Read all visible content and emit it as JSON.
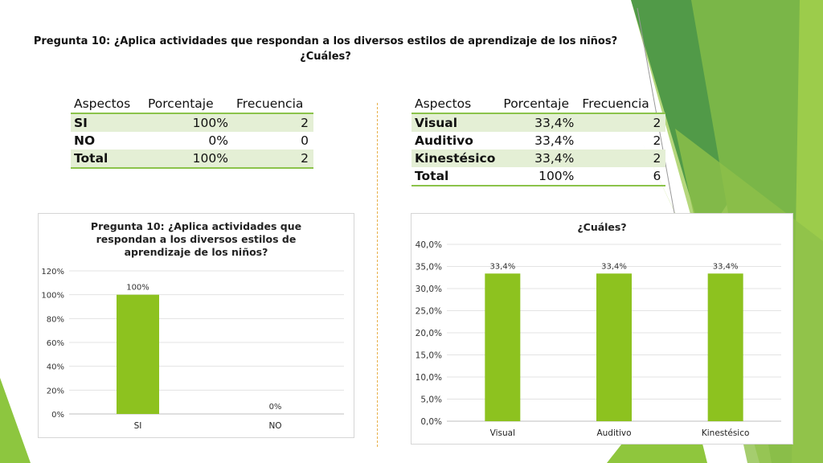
{
  "page": {
    "title_line1": "Pregunta 10: ¿Aplica actividades que respondan a los diversos estilos de aprendizaje de los niños?",
    "title_line2": "¿Cuáles?"
  },
  "colors": {
    "accent": "#8bc34a",
    "bar": "#8dc21f",
    "table_band": "#e4efd5",
    "divider": "#e8b04a"
  },
  "table1": {
    "headers": [
      "Aspectos",
      "Porcentaje",
      "Frecuencia"
    ],
    "rows": [
      [
        "SI",
        "100%",
        "2"
      ],
      [
        "NO",
        "0%",
        "0"
      ],
      [
        "Total",
        "100%",
        "2"
      ]
    ]
  },
  "table2": {
    "headers": [
      "Aspectos",
      "Porcentaje",
      "Frecuencia"
    ],
    "rows": [
      [
        "Visual",
        "33,4%",
        "2"
      ],
      [
        "Auditivo",
        "33,4%",
        "2"
      ],
      [
        "Kinestésico",
        "33,4%",
        "2"
      ],
      [
        "Total",
        "100%",
        "6"
      ]
    ]
  },
  "chart_data": [
    {
      "type": "bar",
      "title": "Pregunta 10: ¿Aplica actividades que respondan a los diversos estilos de aprendizaje de los niños?",
      "categories": [
        "SI",
        "NO"
      ],
      "values": [
        100,
        0
      ],
      "data_labels": [
        "100%",
        "0%"
      ],
      "ylim": [
        0,
        120
      ],
      "yticks": [
        0,
        20,
        40,
        60,
        80,
        100,
        120
      ],
      "ytick_labels": [
        "0%",
        "20%",
        "40%",
        "60%",
        "80%",
        "100%",
        "120%"
      ],
      "grid": true,
      "legend": "none"
    },
    {
      "type": "bar",
      "title": "¿Cuáles?",
      "categories": [
        "Visual",
        "Auditivo",
        "Kinestésico"
      ],
      "values": [
        33.4,
        33.4,
        33.4
      ],
      "data_labels": [
        "33,4%",
        "33,4%",
        "33,4%"
      ],
      "ylim": [
        0,
        40
      ],
      "yticks": [
        0,
        5,
        10,
        15,
        20,
        25,
        30,
        35,
        40
      ],
      "ytick_labels": [
        "0,0%",
        "5,0%",
        "10,0%",
        "15,0%",
        "20,0%",
        "25,0%",
        "30,0%",
        "35,0%",
        "40,0%"
      ],
      "grid": true,
      "legend": "none"
    }
  ]
}
